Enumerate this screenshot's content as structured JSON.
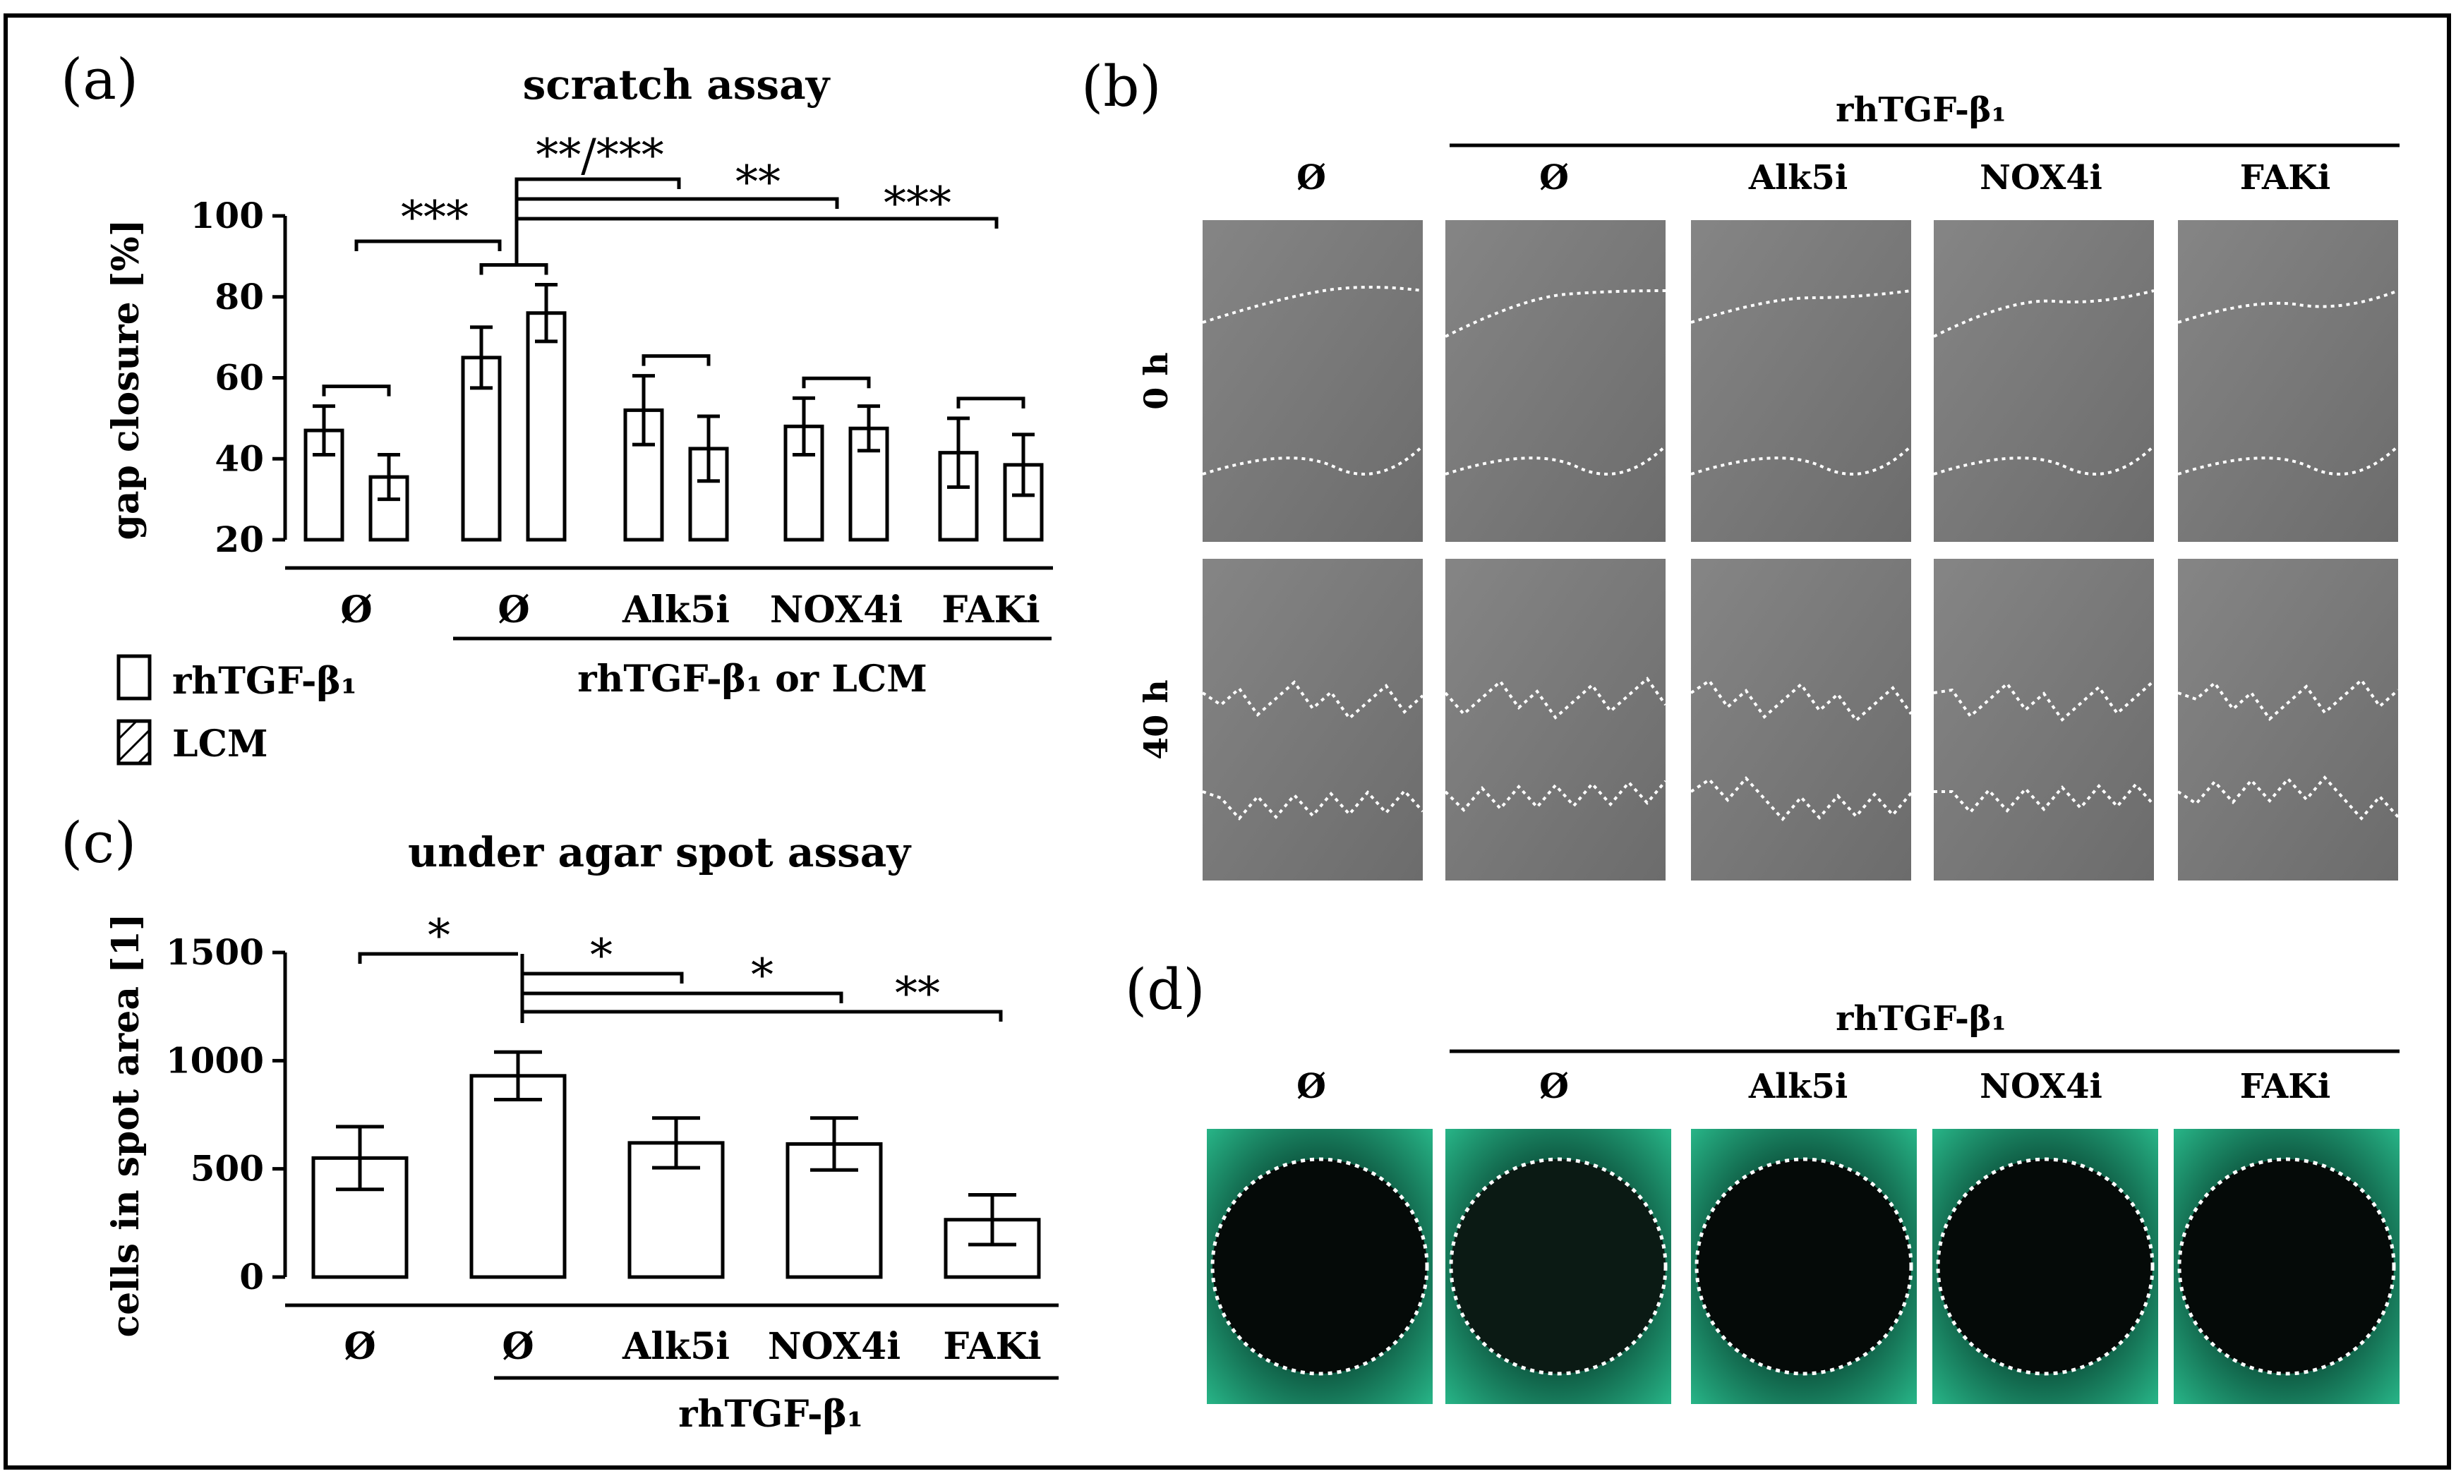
{
  "panel_labels": {
    "a": "(a)",
    "b": "(b)",
    "c": "(c)",
    "d": "(d)"
  },
  "legend": {
    "rh": "rhTGF-β₁",
    "lcm": "LCM"
  },
  "chart_data": [
    {
      "type": "bar",
      "title": "scratch assay",
      "ylabel": "gap closure [%]",
      "ylim": [
        20,
        100
      ],
      "yticks": [
        20,
        40,
        60,
        80,
        100
      ],
      "categories": [
        "Ø",
        "Ø",
        "Alk5i",
        "NOX4i",
        "FAKi"
      ],
      "group_label": "rhTGF-β₁ or LCM",
      "series": [
        {
          "name": "rhTGF-β₁",
          "pattern": "open",
          "values": [
            47,
            65,
            52,
            48,
            41.5
          ],
          "errors": [
            6,
            7.5,
            8.5,
            7,
            8.5
          ]
        },
        {
          "name": "LCM",
          "pattern": "hatched",
          "values": [
            35.5,
            76,
            42.5,
            47.5,
            38.5
          ],
          "errors": [
            5.5,
            7,
            8,
            5.5,
            7.5
          ]
        }
      ],
      "significance": [
        "***",
        "**/***",
        "**",
        "***"
      ]
    },
    {
      "type": "bar",
      "title": "under agar spot assay",
      "ylabel": "cells in spot area [1]",
      "ylim": [
        0,
        1500
      ],
      "yticks": [
        0,
        500,
        1000,
        1500
      ],
      "categories": [
        "Ø",
        "Ø",
        "Alk5i",
        "NOX4i",
        "FAKi"
      ],
      "group_label": "rhTGF-β₁",
      "values": [
        550,
        930,
        620,
        615,
        265
      ],
      "errors": [
        145,
        110,
        115,
        120,
        115
      ],
      "significance": [
        "*",
        "*",
        "*",
        "**"
      ]
    }
  ],
  "panel_b": {
    "group_label": "rhTGF-β₁",
    "columns": [
      "Ø",
      "Ø",
      "Alk5i",
      "NOX4i",
      "FAKi"
    ],
    "rows": [
      "0 h",
      "40 h"
    ]
  },
  "panel_d": {
    "group_label": "rhTGF-β₁",
    "columns": [
      "Ø",
      "Ø",
      "Alk5i",
      "NOX4i",
      "FAKi"
    ]
  },
  "colors": {
    "micrograph_gray": "#7a7a7a",
    "fluorescence_green": "#1fa57a",
    "spot_dark": "#050a08"
  }
}
